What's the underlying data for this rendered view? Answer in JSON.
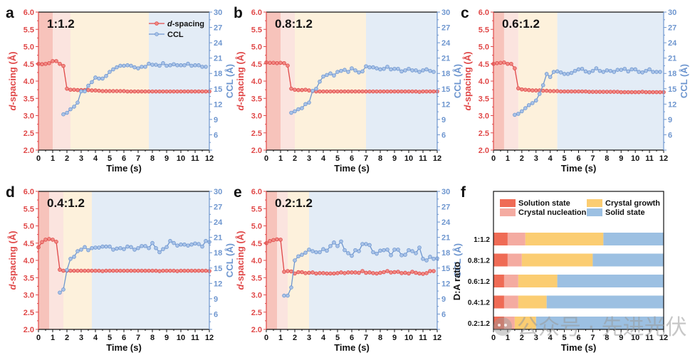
{
  "colors": {
    "solution": "#ef6b55",
    "nucleation": "#f4aba1",
    "growth": "#fbcd72",
    "solid": "#9cc0e2",
    "solution_bg": "#f7c3bb",
    "nucleation_bg": "#fbe4df",
    "growth_bg": "#fdf1dc",
    "solid_bg": "#e3ecf6",
    "dspacing": "#e04848",
    "ccl": "#6e96cf"
  },
  "watermark": "公众号 · 先进光伏",
  "chart_data": [
    {
      "type": "line",
      "panel": "a",
      "ratio": "1:1.2",
      "xlabel": "Time (s)",
      "ylabel_left": "d-spacing (Å)",
      "ylabel_left_italic": "d",
      "ylabel_left_rest": "-spacing (Å)",
      "ylabel_right": "CCL (Å)",
      "xlim": [
        0,
        12
      ],
      "ylim_left": [
        2.0,
        6.0
      ],
      "ylim_right": [
        3,
        30
      ],
      "xticks": [
        "0",
        "1",
        "2",
        "3",
        "4",
        "5",
        "6",
        "7",
        "8",
        "9",
        "10",
        "11",
        "12"
      ],
      "yticks_left": [
        "2.0",
        "2.5",
        "3.0",
        "3.5",
        "4.0",
        "4.5",
        "5.0",
        "5.5",
        "6.0"
      ],
      "yticks_right": [
        "6",
        "9",
        "12",
        "15",
        "18",
        "21",
        "24",
        "27",
        "30"
      ],
      "legend": [
        {
          "name": "d-spacing",
          "italic": "d",
          "rest": "-spacing"
        },
        {
          "name": "CCL",
          "italic": "",
          "rest": "CCL"
        }
      ],
      "stages": [
        [
          0,
          1
        ],
        [
          1,
          2.25
        ],
        [
          2.25,
          7.75
        ],
        [
          7.75,
          12
        ]
      ],
      "series": [
        {
          "name": "d-spacing",
          "x0": 0,
          "dx": 0.25,
          "values": [
            4.5,
            4.49,
            4.5,
            4.52,
            4.58,
            4.58,
            4.5,
            4.44,
            3.78,
            3.75,
            3.75,
            3.74,
            3.74,
            3.74,
            3.74,
            3.73,
            3.73,
            3.72,
            3.71,
            3.71,
            3.71,
            3.71,
            3.71,
            3.71,
            3.71,
            3.7,
            3.7,
            3.7,
            3.7,
            3.7,
            3.7,
            3.7,
            3.7,
            3.7,
            3.7,
            3.7,
            3.7,
            3.7,
            3.7,
            3.7,
            3.7,
            3.7,
            3.7,
            3.7,
            3.7,
            3.7,
            3.7,
            3.7,
            3.7
          ]
        },
        {
          "name": "CCL",
          "x0": 1.75,
          "dx": 0.25,
          "values": [
            10.0,
            10.3,
            11.0,
            11.5,
            12.3,
            14.5,
            14.5,
            15.6,
            16.3,
            17.2,
            17.0,
            17.0,
            17.5,
            18.3,
            18.8,
            19.2,
            19.5,
            19.5,
            19.6,
            19.5,
            19.2,
            19.0,
            19.3,
            19.3,
            19.9,
            19.7,
            19.7,
            19.5,
            20.0,
            19.5,
            19.6,
            19.8,
            19.6,
            19.6,
            19.6,
            19.9,
            19.5,
            19.6,
            19.6,
            19.3,
            19.3
          ]
        }
      ]
    },
    {
      "type": "line",
      "panel": "b",
      "ratio": "0.8:1.2",
      "xlabel": "Time (s)",
      "ylabel_left": "d-spacing (Å)",
      "ylabel_left_italic": "d",
      "ylabel_left_rest": "-spacing (Å)",
      "ylabel_right": "CCL (Å)",
      "xlim": [
        0,
        12
      ],
      "ylim_left": [
        2.0,
        6.0
      ],
      "ylim_right": [
        3,
        30
      ],
      "xticks": [
        "0",
        "1",
        "2",
        "3",
        "4",
        "5",
        "6",
        "7",
        "8",
        "9",
        "10",
        "11",
        "12"
      ],
      "yticks_left": [
        "2.0",
        "2.5",
        "3.0",
        "3.5",
        "4.0",
        "4.5",
        "5.0",
        "5.5",
        "6.0"
      ],
      "yticks_right": [
        "6",
        "9",
        "12",
        "15",
        "18",
        "21",
        "24",
        "27",
        "30"
      ],
      "stages": [
        [
          0,
          1
        ],
        [
          1,
          2
        ],
        [
          2,
          7
        ],
        [
          7,
          12
        ]
      ],
      "series": [
        {
          "name": "d-spacing",
          "x0": 0,
          "dx": 0.25,
          "values": [
            4.54,
            4.53,
            4.53,
            4.52,
            4.53,
            4.52,
            4.45,
            3.78,
            3.75,
            3.74,
            3.74,
            3.75,
            3.73,
            3.71,
            3.7,
            3.7,
            3.7,
            3.7,
            3.7,
            3.7,
            3.7,
            3.7,
            3.7,
            3.7,
            3.7,
            3.7,
            3.7,
            3.7,
            3.7,
            3.7,
            3.7,
            3.7,
            3.7,
            3.7,
            3.7,
            3.7,
            3.7,
            3.7,
            3.7,
            3.7,
            3.7,
            3.7,
            3.7,
            3.69,
            3.7,
            3.7,
            3.7,
            3.7,
            3.7
          ]
        },
        {
          "name": "CCL",
          "x0": 1.75,
          "dx": 0.25,
          "values": [
            10.3,
            10.6,
            11.0,
            11.2,
            12.0,
            12.3,
            14.6,
            15.0,
            16.4,
            17.4,
            17.7,
            18.0,
            17.6,
            18.3,
            18.5,
            18.7,
            18.3,
            19.0,
            18.6,
            18.2,
            18.4,
            19.4,
            19.2,
            19.2,
            19.0,
            18.8,
            18.9,
            19.3,
            18.8,
            18.9,
            18.9,
            18.4,
            18.6,
            18.9,
            18.6,
            18.6,
            18.3,
            18.6,
            18.8,
            18.5,
            18.3
          ]
        }
      ]
    },
    {
      "type": "line",
      "panel": "c",
      "ratio": "0.6:1.2",
      "xlabel": "Time (s)",
      "ylabel_left": "d-spacing (Å)",
      "ylabel_left_italic": "d",
      "ylabel_left_rest": "-spacing (Å)",
      "ylabel_right": "CCL (Å)",
      "xlim": [
        0,
        12
      ],
      "ylim_left": [
        2.0,
        6.0
      ],
      "ylim_right": [
        3,
        30
      ],
      "xticks": [
        "0",
        "1",
        "2",
        "3",
        "4",
        "5",
        "6",
        "7",
        "8",
        "9",
        "10",
        "11",
        "12"
      ],
      "yticks_left": [
        "2.0",
        "2.5",
        "3.0",
        "3.5",
        "4.0",
        "4.5",
        "5.0",
        "5.5",
        "6.0"
      ],
      "yticks_right": [
        "6",
        "9",
        "12",
        "15",
        "18",
        "21",
        "24",
        "27",
        "30"
      ],
      "stages": [
        [
          0,
          0.75
        ],
        [
          0.75,
          1.75
        ],
        [
          1.75,
          4.5
        ],
        [
          4.5,
          12
        ]
      ],
      "series": [
        {
          "name": "d-spacing",
          "x0": 0,
          "dx": 0.25,
          "values": [
            4.5,
            4.52,
            4.53,
            4.54,
            4.5,
            4.5,
            4.37,
            3.79,
            3.76,
            3.75,
            3.74,
            3.73,
            3.73,
            3.73,
            3.72,
            3.72,
            3.71,
            3.71,
            3.71,
            3.7,
            3.7,
            3.7,
            3.7,
            3.7,
            3.7,
            3.7,
            3.7,
            3.69,
            3.69,
            3.69,
            3.69,
            3.69,
            3.69,
            3.69,
            3.69,
            3.69,
            3.68,
            3.68,
            3.68,
            3.68,
            3.68,
            3.68,
            3.69,
            3.68,
            3.68,
            3.68,
            3.68,
            3.68,
            3.68
          ]
        },
        {
          "name": "CCL",
          "x0": 1.5,
          "dx": 0.25,
          "values": [
            9.9,
            10.1,
            10.6,
            11.2,
            11.8,
            12.2,
            12.7,
            14.0,
            15.7,
            17.9,
            17.3,
            18.3,
            18.4,
            18.2,
            17.9,
            17.9,
            18.1,
            18.5,
            18.8,
            18.9,
            18.4,
            18.2,
            18.5,
            19.0,
            18.5,
            18.3,
            18.6,
            18.5,
            18.3,
            18.7,
            18.7,
            18.9,
            18.4,
            18.8,
            18.8,
            18.3,
            18.2,
            18.5,
            18.8,
            18.3,
            18.3,
            18.3
          ]
        }
      ]
    },
    {
      "type": "line",
      "panel": "d",
      "ratio": "0.4:1.2",
      "xlabel": "Time (s)",
      "ylabel_left": "d-spacing (Å)",
      "ylabel_left_italic": "d",
      "ylabel_left_rest": "-spacing (Å)",
      "ylabel_right": "CCL (Å)",
      "xlim": [
        0,
        12
      ],
      "ylim_left": [
        2.0,
        6.0
      ],
      "ylim_right": [
        3,
        30
      ],
      "xticks": [
        "0",
        "1",
        "2",
        "3",
        "4",
        "5",
        "6",
        "7",
        "8",
        "9",
        "10",
        "11",
        "12"
      ],
      "yticks_left": [
        "2.0",
        "2.5",
        "3.0",
        "3.5",
        "4.0",
        "4.5",
        "5.0",
        "5.5",
        "6.0"
      ],
      "yticks_right": [
        "6",
        "9",
        "12",
        "15",
        "18",
        "21",
        "24",
        "27",
        "30"
      ],
      "stages": [
        [
          0,
          0.75
        ],
        [
          0.75,
          1.75
        ],
        [
          1.75,
          3.75
        ],
        [
          3.75,
          12
        ]
      ],
      "series": [
        {
          "name": "d-spacing",
          "x0": 0,
          "dx": 0.25,
          "values": [
            4.38,
            4.53,
            4.6,
            4.62,
            4.6,
            4.54,
            3.73,
            3.7,
            3.7,
            3.7,
            3.7,
            3.7,
            3.7,
            3.7,
            3.7,
            3.7,
            3.7,
            3.7,
            3.69,
            3.7,
            3.7,
            3.7,
            3.7,
            3.7,
            3.7,
            3.7,
            3.7,
            3.7,
            3.7,
            3.7,
            3.7,
            3.7,
            3.7,
            3.7,
            3.69,
            3.7,
            3.7,
            3.7,
            3.7,
            3.69,
            3.7,
            3.7,
            3.7,
            3.7,
            3.7,
            3.7,
            3.7,
            3.7,
            3.69
          ]
        },
        {
          "name": "CCL",
          "x0": 1.5,
          "dx": 0.25,
          "values": [
            10.2,
            10.8,
            14.6,
            16.8,
            17.2,
            18.3,
            18.6,
            19.1,
            18.5,
            18.9,
            19.0,
            19.0,
            19.2,
            19.2,
            19.2,
            18.6,
            18.8,
            18.9,
            18.7,
            19.2,
            19.1,
            18.6,
            18.9,
            19.3,
            19.3,
            18.9,
            19.9,
            18.9,
            18.1,
            18.7,
            19.1,
            20.3,
            19.9,
            19.4,
            19.6,
            19.6,
            19.4,
            19.6,
            19.8,
            19.7,
            19.2,
            20.3,
            20.1
          ]
        }
      ]
    },
    {
      "type": "line",
      "panel": "e",
      "ratio": "0.2:1.2",
      "xlabel": "Time (s)",
      "ylabel_left": "d-spacing (Å)",
      "ylabel_left_italic": "d",
      "ylabel_left_rest": "-spacing (Å)",
      "ylabel_right": "CCL (Å)",
      "xlim": [
        0,
        12
      ],
      "ylim_left": [
        2.0,
        6.0
      ],
      "ylim_right": [
        3,
        30
      ],
      "xticks": [
        "0",
        "1",
        "2",
        "3",
        "4",
        "5",
        "6",
        "7",
        "8",
        "9",
        "10",
        "11",
        "12"
      ],
      "yticks_left": [
        "2.0",
        "2.5",
        "3.0",
        "3.5",
        "4.0",
        "4.5",
        "5.0",
        "5.5",
        "6.0"
      ],
      "yticks_right": [
        "6",
        "9",
        "12",
        "15",
        "18",
        "21",
        "24",
        "27",
        "30"
      ],
      "stages": [
        [
          0,
          0.75
        ],
        [
          0.75,
          1.5
        ],
        [
          1.5,
          3
        ],
        [
          3,
          12
        ]
      ],
      "series": [
        {
          "name": "d-spacing",
          "x0": 0,
          "dx": 0.25,
          "values": [
            4.5,
            4.56,
            4.59,
            4.61,
            4.6,
            3.67,
            3.69,
            3.68,
            3.62,
            3.66,
            3.66,
            3.63,
            3.64,
            3.65,
            3.62,
            3.63,
            3.63,
            3.62,
            3.62,
            3.62,
            3.63,
            3.65,
            3.63,
            3.65,
            3.65,
            3.65,
            3.64,
            3.69,
            3.64,
            3.65,
            3.63,
            3.62,
            3.64,
            3.66,
            3.69,
            3.65,
            3.66,
            3.67,
            3.63,
            3.64,
            3.62,
            3.67,
            3.64,
            3.62,
            3.61,
            3.63,
            3.69,
            3.69
          ]
        },
        {
          "name": "CCL",
          "x0": 1.25,
          "dx": 0.25,
          "values": [
            9.6,
            9.6,
            11.2,
            16.5,
            17.3,
            17.6,
            18.0,
            18.6,
            18.3,
            18.1,
            18.1,
            18.7,
            18.4,
            19.3,
            20.0,
            19.3,
            20.2,
            18.5,
            17.9,
            17.4,
            18.5,
            18.3,
            19.7,
            19.7,
            19.5,
            18.1,
            17.8,
            18.4,
            18.5,
            18.6,
            17.5,
            18.6,
            18.6,
            17.5,
            17.6,
            18.5,
            18.3,
            17.9,
            19.0,
            16.8,
            16.5,
            17.2,
            16.8,
            16.9
          ]
        }
      ]
    },
    {
      "type": "bar",
      "orientation": "horizontal-stacked",
      "panel": "f",
      "xlabel": "Time (s)",
      "ylabel": "D:A ratio",
      "xlim": [
        0,
        12
      ],
      "xticks": [
        "0",
        "1",
        "2",
        "3",
        "4",
        "5",
        "6",
        "7",
        "8",
        "9",
        "10",
        "11",
        "12"
      ],
      "categories": [
        "1:1.2",
        "0.8:1.2",
        "0.6:1.2",
        "0.4:1.2",
        "0.2:1.2"
      ],
      "legend": [
        "Solution state",
        "Crystal nucleation",
        "Crystal growth",
        "Solid state"
      ],
      "series": [
        {
          "name": "Solution state",
          "values": [
            1.0,
            1.0,
            0.75,
            0.75,
            0.75
          ]
        },
        {
          "name": "Crystal nucleation",
          "values": [
            1.25,
            1.0,
            1.0,
            1.0,
            0.75
          ]
        },
        {
          "name": "Crystal growth",
          "values": [
            5.5,
            5.0,
            2.75,
            2.0,
            1.5
          ]
        },
        {
          "name": "Solid state",
          "values": [
            4.25,
            5.0,
            7.5,
            8.25,
            9.0
          ]
        }
      ]
    }
  ]
}
